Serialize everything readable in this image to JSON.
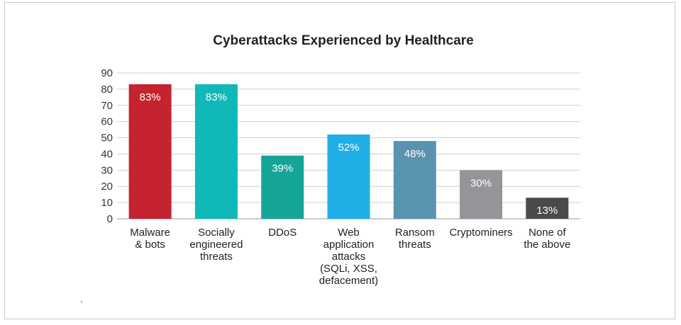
{
  "chart_data": {
    "type": "bar",
    "title": "Cyberattacks Experienced by Healthcare",
    "xlabel": "",
    "ylabel": "",
    "ylim": [
      0,
      90
    ],
    "yticks": [
      0,
      10,
      20,
      30,
      40,
      50,
      60,
      70,
      80,
      90
    ],
    "grid": true,
    "categories": [
      [
        "Malware",
        "& bots"
      ],
      [
        "Socially",
        "engineered",
        "threats"
      ],
      [
        "DDoS"
      ],
      [
        "Web",
        "application",
        "attacks",
        "(SQLi, XSS,",
        "defacement)"
      ],
      [
        "Ransom",
        "threats"
      ],
      [
        "Cryptominers"
      ],
      [
        "None of",
        "the above"
      ]
    ],
    "values": [
      83,
      83,
      39,
      52,
      48,
      30,
      13
    ],
    "data_labels": [
      "83%",
      "83%",
      "39%",
      "52%",
      "48%",
      "30%",
      "13%"
    ],
    "colors": [
      "#c4232f",
      "#11b8b8",
      "#15a597",
      "#20aee6",
      "#5a93b0",
      "#939598",
      "#4a4a4a"
    ]
  },
  "footnote_mark": "."
}
